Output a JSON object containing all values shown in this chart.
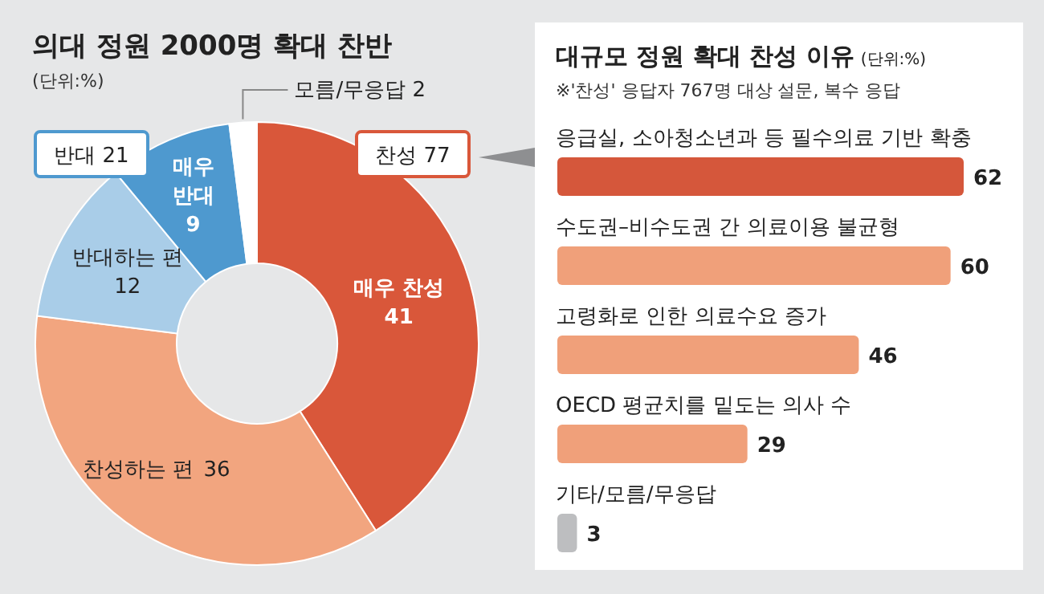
{
  "chart_data": [
    {
      "type": "donut",
      "title": "의대 정원 2000명 확대 찬반",
      "categories": [
        "매우 찬성",
        "찬성하는 편",
        "반대하는 편",
        "매우 반대",
        "모름/무응답"
      ],
      "values": [
        41,
        36,
        12,
        9,
        2
      ],
      "colors": [
        "#d9573a",
        "#f2a57f",
        "#a9cde8",
        "#4e99cf",
        "#ffffff"
      ],
      "data_labels": true,
      "annotations": [
        "(단위:%)",
        "찬성 77",
        "반대 21"
      ]
    },
    {
      "type": "bar",
      "orientation": "horizontal",
      "title": "대규모 정원 확대 찬성 이유",
      "categories": [
        "응급실, 소아청소년과 등 필수의료 기반 확충",
        "수도권–비수도권 간 의료이용 불균형",
        "고령화로 인한 의료수요 증가",
        "OECD 평균치를 밑도는 의사 수",
        "기타/모름/무응답"
      ],
      "values": [
        62,
        60,
        46,
        29,
        3
      ],
      "colors": [
        "#d5573b",
        "#f0a07a",
        "#f0a07a",
        "#f0a07a",
        "#bdbec0"
      ],
      "data_labels": true,
      "annotations": [
        "(단위:%)",
        "※'찬성' 응답자 767명 대상 설문, 복수 응답"
      ]
    }
  ]
}
